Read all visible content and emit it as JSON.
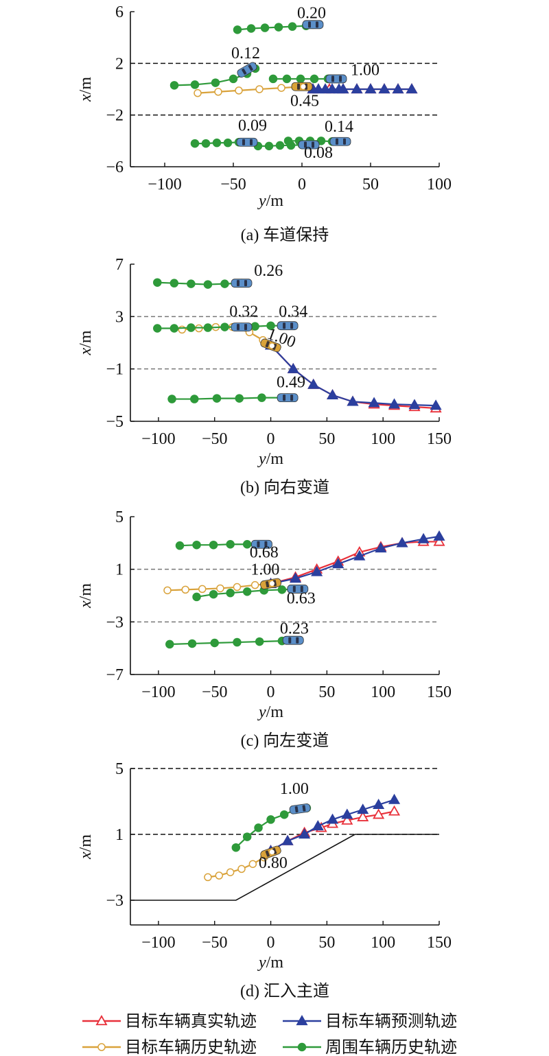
{
  "series_styles": {
    "true_traj": {
      "label": "目标车辆真实轨迹",
      "color": "#e8303a",
      "marker": "open-triangle"
    },
    "pred_traj": {
      "label": "目标车辆预测轨迹",
      "color": "#2b3f9e",
      "marker": "filled-triangle"
    },
    "hist_traj": {
      "label": "目标车辆历史轨迹",
      "color": "#d9a23a",
      "marker": "open-circle"
    },
    "surr_traj": {
      "label": "周围车辆历史轨迹",
      "color": "#2e9a3a",
      "marker": "filled-circle"
    }
  },
  "car_colors": {
    "target": "#d9a23a",
    "surround": "#5b8fc9"
  },
  "chart_data": [
    {
      "type": "line",
      "caption": "(a) 车道保持",
      "xlabel": "y/m",
      "ylabel": "x/m",
      "xlim": [
        -125,
        100
      ],
      "ylim": [
        -6,
        6
      ],
      "xticks": [
        -100,
        -50,
        0,
        50,
        100
      ],
      "yticks": [
        -6,
        -2,
        2,
        6
      ],
      "lane_lines": [
        2,
        -2
      ],
      "lane_style": "dashed-black",
      "series": [
        {
          "role": "true_traj",
          "x": [
            8,
            20,
            30,
            40,
            50,
            60,
            70,
            80
          ],
          "y": [
            0,
            0,
            0,
            0,
            0,
            0,
            0,
            0
          ]
        },
        {
          "role": "pred_traj",
          "x": [
            8,
            12,
            17,
            22,
            27,
            30,
            40,
            50,
            60,
            70,
            80
          ],
          "y": [
            0,
            0,
            0,
            0,
            0,
            0,
            0,
            0,
            0,
            0,
            0
          ]
        },
        {
          "role": "hist_traj",
          "x": [
            -76,
            -61,
            -46,
            -31,
            -15,
            0
          ],
          "y": [
            -0.3,
            -0.2,
            -0.1,
            0,
            0.1,
            0.2
          ]
        },
        {
          "role": "surr_traj",
          "x": [
            -47,
            -37,
            -27,
            -17,
            -7,
            3,
            8
          ],
          "y": [
            4.6,
            4.7,
            4.75,
            4.8,
            4.85,
            4.9,
            5.0
          ]
        },
        {
          "role": "surr_traj",
          "x": [
            -93,
            -78,
            -63,
            -50,
            -40,
            -34
          ],
          "y": [
            0.3,
            0.35,
            0.5,
            0.8,
            1.2,
            1.6
          ]
        },
        {
          "role": "surr_traj",
          "x": [
            -21,
            -11,
            -1,
            9,
            19,
            27
          ],
          "y": [
            0.8,
            0.8,
            0.8,
            0.8,
            0.8,
            0.8
          ]
        },
        {
          "role": "surr_traj",
          "x": [
            -78,
            -70,
            -62,
            -54,
            -46,
            -40
          ],
          "y": [
            -4.2,
            -4.2,
            -4.15,
            -4.15,
            -4.1,
            -4.1
          ]
        },
        {
          "role": "surr_traj",
          "x": [
            -32,
            -24,
            -16,
            -8,
            0,
            5
          ],
          "y": [
            -4.4,
            -4.4,
            -4.35,
            -4.35,
            -4.3,
            -4.3
          ]
        },
        {
          "role": "surr_traj",
          "x": [
            -10,
            -2,
            6,
            14,
            22,
            28
          ],
          "y": [
            -4.0,
            -4.0,
            -4.0,
            -4.0,
            -4.05,
            -4.05
          ]
        }
      ],
      "vehicles": [
        {
          "kind": "target",
          "x": 0,
          "y": 0.2,
          "angle": 0
        },
        {
          "kind": "surround",
          "x": 8,
          "y": 5.0,
          "angle": 0
        },
        {
          "kind": "surround",
          "x": -40,
          "y": 1.5,
          "angle": -30
        },
        {
          "kind": "surround",
          "x": 25,
          "y": 0.8,
          "angle": 0
        },
        {
          "kind": "surround",
          "x": -40,
          "y": -4.1,
          "angle": 0
        },
        {
          "kind": "surround",
          "x": 5,
          "y": -4.3,
          "angle": 0
        },
        {
          "kind": "surround",
          "x": 28,
          "y": -4.05,
          "angle": 0
        }
      ],
      "annotations": [
        {
          "text": "0.20",
          "x": 7,
          "y": 5.5
        },
        {
          "text": "0.12",
          "x": -41,
          "y": 2.4
        },
        {
          "text": "1.00",
          "x": 46,
          "y": 1.1
        },
        {
          "text": "0.45",
          "x": 2,
          "y": -1.3
        },
        {
          "text": "0.09",
          "x": -36,
          "y": -3.2
        },
        {
          "text": "0.14",
          "x": 27,
          "y": -3.3
        },
        {
          "text": "0.08",
          "x": 12,
          "y": -5.3
        }
      ]
    },
    {
      "type": "line",
      "caption": "(b) 向右变道",
      "xlabel": "y/m",
      "ylabel": "x/m",
      "xlim": [
        -125,
        150
      ],
      "ylim": [
        -5,
        7
      ],
      "xticks": [
        -100,
        -50,
        0,
        50,
        100,
        150
      ],
      "yticks": [
        -5,
        -1,
        3,
        7
      ],
      "lane_lines": [
        3,
        -1
      ],
      "lane_style": "dashed-gray",
      "series": [
        {
          "role": "true_traj",
          "x": [
            0,
            20,
            38,
            55,
            73,
            92,
            110,
            128,
            147
          ],
          "y": [
            0.8,
            -1.0,
            -2.2,
            -3.0,
            -3.5,
            -3.7,
            -3.8,
            -3.9,
            -4.0
          ]
        },
        {
          "role": "pred_traj",
          "x": [
            0,
            20,
            38,
            55,
            73,
            92,
            110,
            128,
            147
          ],
          "y": [
            0.8,
            -1.0,
            -2.2,
            -3.0,
            -3.5,
            -3.6,
            -3.7,
            -3.75,
            -3.8
          ]
        },
        {
          "role": "hist_traj",
          "x": [
            -79,
            -64,
            -49,
            -34,
            -19,
            -7,
            0
          ],
          "y": [
            2.0,
            2.1,
            2.2,
            2.2,
            1.8,
            1.2,
            0.8
          ]
        },
        {
          "role": "surr_traj",
          "x": [
            -101,
            -86,
            -71,
            -56,
            -41,
            -26
          ],
          "y": [
            5.6,
            5.55,
            5.5,
            5.45,
            5.5,
            5.55
          ]
        },
        {
          "role": "surr_traj",
          "x": [
            -101,
            -86,
            -71,
            -56,
            -41,
            -26,
            -14,
            0,
            15
          ],
          "y": [
            2.1,
            2.1,
            2.15,
            2.15,
            2.2,
            2.2,
            2.25,
            2.3,
            2.3
          ]
        },
        {
          "role": "surr_traj",
          "x": [
            -88,
            -68,
            -48,
            -28,
            -8,
            15
          ],
          "y": [
            -3.3,
            -3.3,
            -3.25,
            -3.25,
            -3.2,
            -3.2
          ]
        }
      ],
      "vehicles": [
        {
          "kind": "target",
          "x": 0,
          "y": 0.8,
          "angle": 20
        },
        {
          "kind": "surround",
          "x": -26,
          "y": 5.55,
          "angle": 0
        },
        {
          "kind": "surround",
          "x": -26,
          "y": 2.2,
          "angle": 0
        },
        {
          "kind": "surround",
          "x": 15,
          "y": 2.3,
          "angle": 0
        },
        {
          "kind": "surround",
          "x": 15,
          "y": -3.2,
          "angle": 0
        }
      ],
      "annotations": [
        {
          "text": "0.26",
          "x": -2,
          "y": 6.1
        },
        {
          "text": "0.32",
          "x": -24,
          "y": 3.0
        },
        {
          "text": "0.34",
          "x": 20,
          "y": 3.0
        },
        {
          "text": "1.00",
          "x": 8,
          "y": 1.0,
          "rotate": 20
        },
        {
          "text": "0.49",
          "x": 18,
          "y": -2.4
        }
      ]
    },
    {
      "type": "line",
      "caption": "(c) 向左变道",
      "xlabel": "y/m",
      "ylabel": "x/m",
      "xlim": [
        -125,
        150
      ],
      "ylim": [
        -7,
        5
      ],
      "xticks": [
        -100,
        -50,
        0,
        50,
        100,
        150
      ],
      "yticks": [
        -7,
        -3,
        1,
        5
      ],
      "lane_lines": [
        1,
        -3
      ],
      "lane_style": "dashed-gray",
      "series": [
        {
          "role": "true_traj",
          "x": [
            0,
            22,
            41,
            60,
            79,
            98,
            117,
            136,
            150
          ],
          "y": [
            -0.1,
            0.4,
            1.0,
            1.6,
            2.3,
            2.7,
            3.0,
            3.1,
            3.1
          ]
        },
        {
          "role": "pred_traj",
          "x": [
            0,
            22,
            41,
            60,
            79,
            98,
            117,
            136,
            150
          ],
          "y": [
            -0.1,
            0.3,
            0.8,
            1.4,
            2.0,
            2.6,
            3.0,
            3.3,
            3.5
          ]
        },
        {
          "role": "hist_traj",
          "x": [
            -92,
            -76,
            -61,
            -45,
            -30,
            -14,
            0
          ],
          "y": [
            -0.6,
            -0.55,
            -0.5,
            -0.45,
            -0.35,
            -0.2,
            -0.1
          ]
        },
        {
          "role": "surr_traj",
          "x": [
            -81,
            -66,
            -51,
            -36,
            -21,
            -8
          ],
          "y": [
            2.8,
            2.85,
            2.85,
            2.9,
            2.9,
            2.9
          ]
        },
        {
          "role": "surr_traj",
          "x": [
            -66,
            -51,
            -36,
            -21,
            -6,
            10,
            24
          ],
          "y": [
            -1.1,
            -0.9,
            -0.8,
            -0.7,
            -0.6,
            -0.55,
            -0.5
          ]
        },
        {
          "role": "surr_traj",
          "x": [
            -90,
            -70,
            -50,
            -30,
            -10,
            10,
            20
          ],
          "y": [
            -4.7,
            -4.65,
            -4.6,
            -4.55,
            -4.5,
            -4.45,
            -4.4
          ]
        }
      ],
      "vehicles": [
        {
          "kind": "target",
          "x": 0,
          "y": -0.1,
          "angle": -10
        },
        {
          "kind": "surround",
          "x": -8,
          "y": 2.9,
          "angle": 0
        },
        {
          "kind": "surround",
          "x": 24,
          "y": -0.5,
          "angle": 0
        },
        {
          "kind": "surround",
          "x": 20,
          "y": -4.4,
          "angle": 0
        }
      ],
      "annotations": [
        {
          "text": "0.68",
          "x": -6,
          "y": 1.9
        },
        {
          "text": "1.00",
          "x": -5,
          "y": 0.6
        },
        {
          "text": "0.63",
          "x": 27,
          "y": -1.6
        },
        {
          "text": "0.23",
          "x": 21,
          "y": -3.9
        }
      ]
    },
    {
      "type": "line",
      "caption": "(d) 汇入主道",
      "xlabel": "y/m",
      "ylabel": "x/m",
      "xlim": [
        -125,
        150
      ],
      "ylim": [
        -4.5,
        5
      ],
      "xticks": [
        -100,
        -50,
        0,
        50,
        100,
        150
      ],
      "yticks": [
        -3,
        1,
        5
      ],
      "lane_lines": [
        5,
        1
      ],
      "lane_style": "dashed-black",
      "boundary": {
        "x": [
          -125,
          -31,
          75,
          150
        ],
        "y": [
          -3,
          -3,
          1,
          1
        ]
      },
      "series": [
        {
          "role": "true_traj",
          "x": [
            0,
            15,
            30,
            45,
            55,
            68,
            82,
            96,
            110
          ],
          "y": [
            0,
            0.6,
            1.1,
            1.4,
            1.65,
            1.85,
            2.05,
            2.2,
            2.4
          ]
        },
        {
          "role": "pred_traj",
          "x": [
            0,
            15,
            30,
            42,
            55,
            68,
            82,
            96,
            110
          ],
          "y": [
            0,
            0.6,
            1.0,
            1.5,
            1.9,
            2.2,
            2.5,
            2.8,
            3.1
          ]
        },
        {
          "role": "hist_traj",
          "x": [
            -56,
            -46,
            -36,
            -26,
            -16,
            -6,
            0
          ],
          "y": [
            -1.6,
            -1.5,
            -1.3,
            -1.1,
            -0.8,
            -0.4,
            -0.1
          ]
        },
        {
          "role": "surr_traj",
          "x": [
            -31,
            -21,
            -11,
            0,
            12,
            22,
            32
          ],
          "y": [
            0.2,
            0.85,
            1.4,
            1.9,
            2.2,
            2.5,
            2.6
          ]
        }
      ],
      "vehicles": [
        {
          "kind": "target",
          "x": 0,
          "y": -0.1,
          "angle": -20
        },
        {
          "kind": "surround",
          "x": 26,
          "y": 2.55,
          "angle": -8
        }
      ],
      "annotations": [
        {
          "text": "1.00",
          "x": 21,
          "y": 3.45
        },
        {
          "text": "0.80",
          "x": 2,
          "y": -1.05
        }
      ]
    }
  ]
}
